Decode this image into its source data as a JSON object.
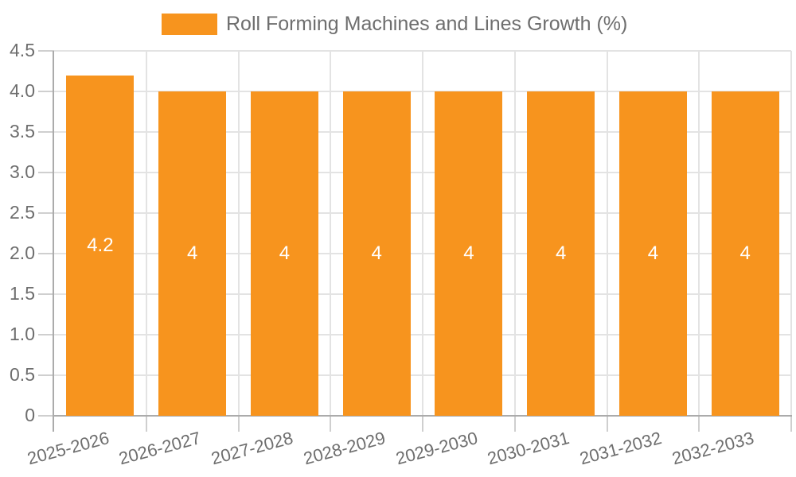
{
  "chart_data": {
    "type": "bar",
    "title": "Roll Forming Machines and Lines Growth (%)",
    "legend_position": "top",
    "categories": [
      "2025-2026",
      "2026-2027",
      "2027-2028",
      "2028-2029",
      "2029-2030",
      "2030-2031",
      "2031-2032",
      "2032-2033"
    ],
    "values": [
      4.2,
      4,
      4,
      4,
      4,
      4,
      4,
      4
    ],
    "bar_labels": [
      "4.2",
      "4",
      "4",
      "4",
      "4",
      "4",
      "4",
      "4"
    ],
    "xlabel": "",
    "ylabel": "",
    "ylim": [
      0,
      4.5
    ],
    "ytick_step": 0.5,
    "ytick_labels": [
      "0",
      "0.5",
      "1.0",
      "1.5",
      "2.0",
      "2.5",
      "3.0",
      "3.5",
      "4.0",
      "4.5"
    ],
    "grid": true,
    "colors": {
      "bar": "#F7941E",
      "bar_label": "#FFFFFF",
      "grid": "#E3E3E3",
      "tick": "#CFCFCF",
      "axis": "#ABABAB",
      "text": "#6E6E6E",
      "background": "#FFFFFF"
    }
  }
}
